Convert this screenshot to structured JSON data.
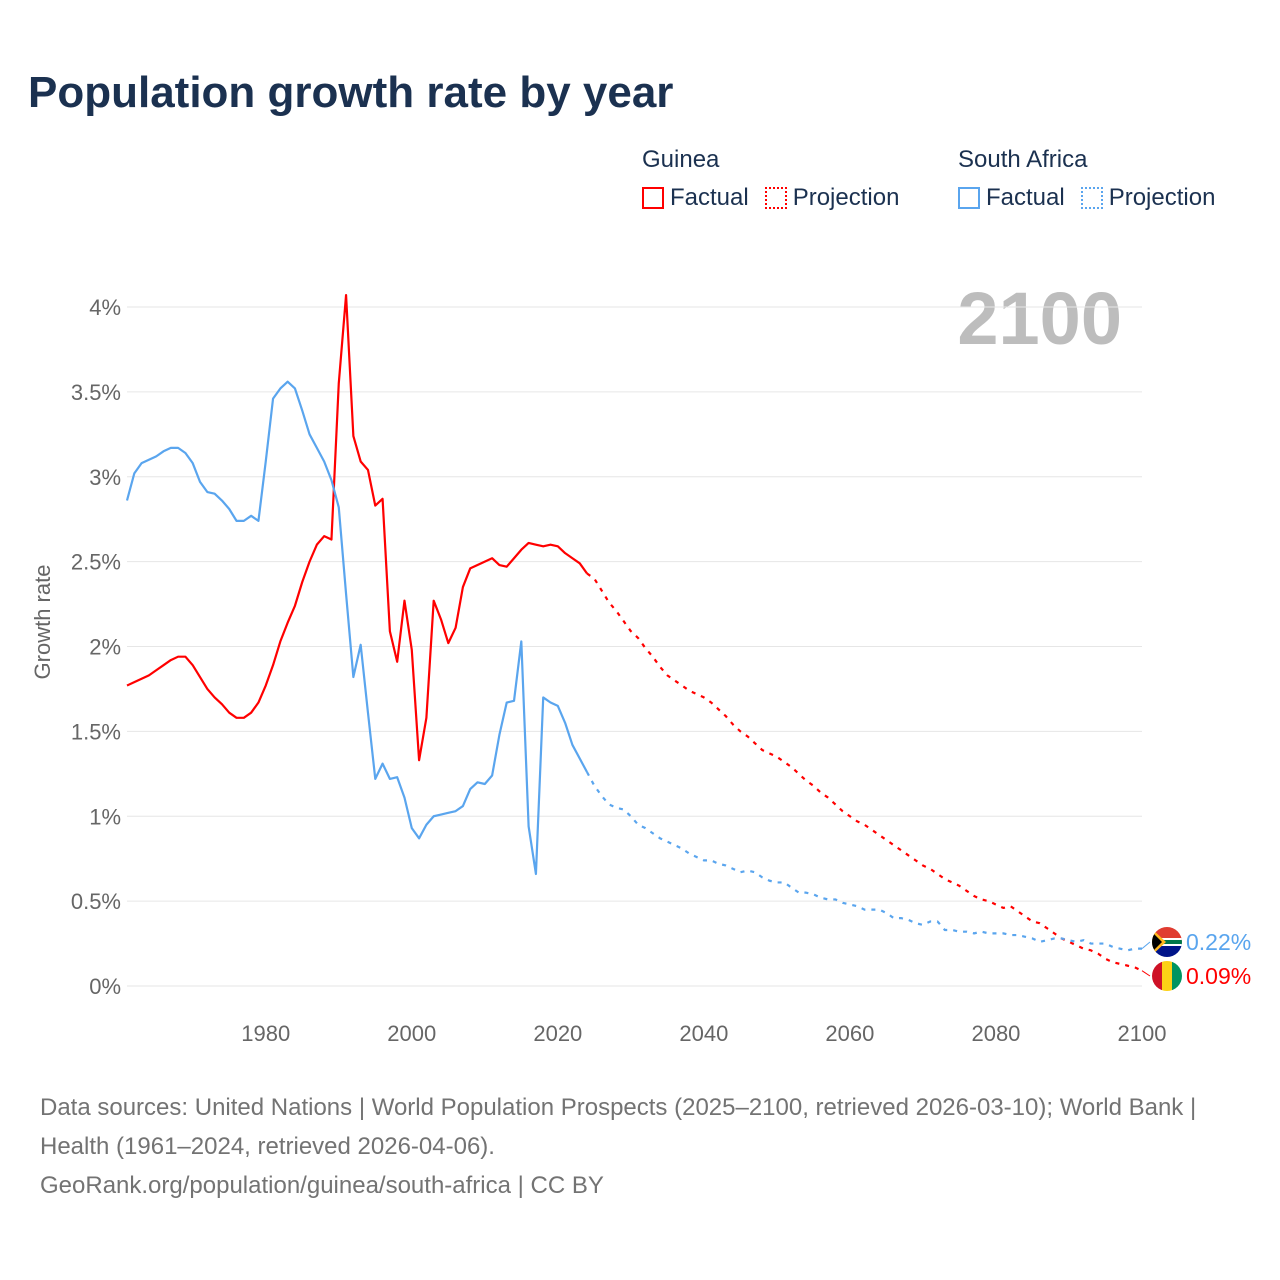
{
  "title": "Population growth rate by year",
  "current_year": "2100",
  "legend": {
    "groups": [
      {
        "name": "Guinea",
        "factual": "Factual",
        "projection": "Projection",
        "color": "#ff0000"
      },
      {
        "name": "South Africa",
        "factual": "Factual",
        "projection": "Projection",
        "color": "#5aa5ee"
      }
    ]
  },
  "end_labels": {
    "south_africa": "0.22%",
    "guinea": "0.09%"
  },
  "footer": {
    "sources": "Data sources: United Nations | World Population Prospects (2025–2100, retrieved 2026-03-10); World Bank | Health (1961–2024, retrieved 2026-04-06).",
    "credit": "GeoRank.org/population/guinea/south-africa | CC BY"
  },
  "chart_data": {
    "type": "line",
    "title": "Population growth rate by year",
    "xlabel": "",
    "ylabel": "Growth rate",
    "xlim": [
      1961,
      2100
    ],
    "ylim": [
      0,
      4.2
    ],
    "x_ticks": [
      1980,
      2000,
      2020,
      2040,
      2060,
      2080,
      2100
    ],
    "y_ticks": [
      {
        "value": 0,
        "label": "0%"
      },
      {
        "value": 0.5,
        "label": "0.5%"
      },
      {
        "value": 1,
        "label": "1%"
      },
      {
        "value": 1.5,
        "label": "1.5%"
      },
      {
        "value": 2,
        "label": "2%"
      },
      {
        "value": 2.5,
        "label": "2.5%"
      },
      {
        "value": 3,
        "label": "3%"
      },
      {
        "value": 3.5,
        "label": "3.5%"
      },
      {
        "value": 4,
        "label": "4%"
      }
    ],
    "grid": true,
    "series": [
      {
        "name": "Guinea Factual",
        "color": "#ff0000",
        "dashed": false,
        "x_start": 1961,
        "values": [
          1.77,
          1.79,
          1.81,
          1.83,
          1.86,
          1.89,
          1.92,
          1.94,
          1.94,
          1.89,
          1.82,
          1.75,
          1.7,
          1.66,
          1.61,
          1.58,
          1.58,
          1.61,
          1.67,
          1.77,
          1.89,
          2.03,
          2.14,
          2.24,
          2.38,
          2.5,
          2.6,
          2.65,
          2.63,
          3.55,
          4.07,
          3.24,
          3.09,
          3.04,
          2.83,
          2.87,
          2.09,
          1.91,
          2.27,
          1.98,
          1.33,
          1.58,
          2.27,
          2.16,
          2.02,
          2.11,
          2.35,
          2.46,
          2.48,
          2.5,
          2.52,
          2.48,
          2.47,
          2.52,
          2.57,
          2.61,
          2.6,
          2.59,
          2.6,
          2.59,
          2.55,
          2.52,
          2.49,
          2.43
        ]
      },
      {
        "name": "Guinea Projection",
        "color": "#ff0000",
        "dashed": true,
        "x_start": 2025,
        "values": [
          2.4,
          2.33,
          2.26,
          2.21,
          2.15,
          2.09,
          2.05,
          1.99,
          1.94,
          1.88,
          1.83,
          1.8,
          1.77,
          1.74,
          1.72,
          1.7,
          1.67,
          1.63,
          1.59,
          1.54,
          1.5,
          1.47,
          1.43,
          1.39,
          1.37,
          1.35,
          1.32,
          1.29,
          1.25,
          1.21,
          1.18,
          1.14,
          1.11,
          1.07,
          1.03,
          1.0,
          0.97,
          0.95,
          0.92,
          0.89,
          0.86,
          0.83,
          0.8,
          0.77,
          0.74,
          0.71,
          0.69,
          0.66,
          0.63,
          0.61,
          0.59,
          0.56,
          0.53,
          0.51,
          0.5,
          0.48,
          0.46,
          0.47,
          0.44,
          0.41,
          0.38,
          0.37,
          0.34,
          0.31,
          0.28,
          0.26,
          0.24,
          0.22,
          0.21,
          0.19,
          0.16,
          0.14,
          0.13,
          0.12,
          0.11,
          0.09
        ]
      },
      {
        "name": "South Africa Factual",
        "color": "#5aa5ee",
        "dashed": false,
        "x_start": 1961,
        "values": [
          2.86,
          3.02,
          3.08,
          3.1,
          3.12,
          3.15,
          3.17,
          3.17,
          3.14,
          3.08,
          2.97,
          2.91,
          2.9,
          2.86,
          2.81,
          2.74,
          2.74,
          2.77,
          2.74,
          3.09,
          3.46,
          3.52,
          3.56,
          3.52,
          3.39,
          3.25,
          3.17,
          3.09,
          2.98,
          2.82,
          2.31,
          1.82,
          2.01,
          1.61,
          1.22,
          1.31,
          1.22,
          1.23,
          1.11,
          0.93,
          0.87,
          0.95,
          1.0,
          1.01,
          1.02,
          1.03,
          1.06,
          1.16,
          1.2,
          1.19,
          1.24,
          1.48,
          1.67,
          1.68,
          2.03,
          0.94,
          0.66,
          1.7,
          1.67,
          1.65,
          1.55,
          1.42,
          1.34,
          1.26
        ]
      },
      {
        "name": "South Africa Projection",
        "color": "#5aa5ee",
        "dashed": true,
        "x_start": 2025,
        "values": [
          1.18,
          1.12,
          1.07,
          1.05,
          1.04,
          1.0,
          0.95,
          0.93,
          0.9,
          0.87,
          0.85,
          0.83,
          0.81,
          0.78,
          0.76,
          0.74,
          0.74,
          0.72,
          0.71,
          0.69,
          0.67,
          0.68,
          0.67,
          0.64,
          0.62,
          0.61,
          0.61,
          0.58,
          0.55,
          0.55,
          0.54,
          0.52,
          0.51,
          0.51,
          0.49,
          0.48,
          0.47,
          0.45,
          0.45,
          0.45,
          0.43,
          0.4,
          0.4,
          0.39,
          0.37,
          0.36,
          0.38,
          0.38,
          0.33,
          0.33,
          0.32,
          0.32,
          0.31,
          0.32,
          0.31,
          0.31,
          0.31,
          0.3,
          0.3,
          0.29,
          0.28,
          0.26,
          0.27,
          0.28,
          0.28,
          0.27,
          0.26,
          0.27,
          0.25,
          0.25,
          0.25,
          0.23,
          0.22,
          0.21,
          0.22,
          0.22
        ]
      }
    ]
  }
}
